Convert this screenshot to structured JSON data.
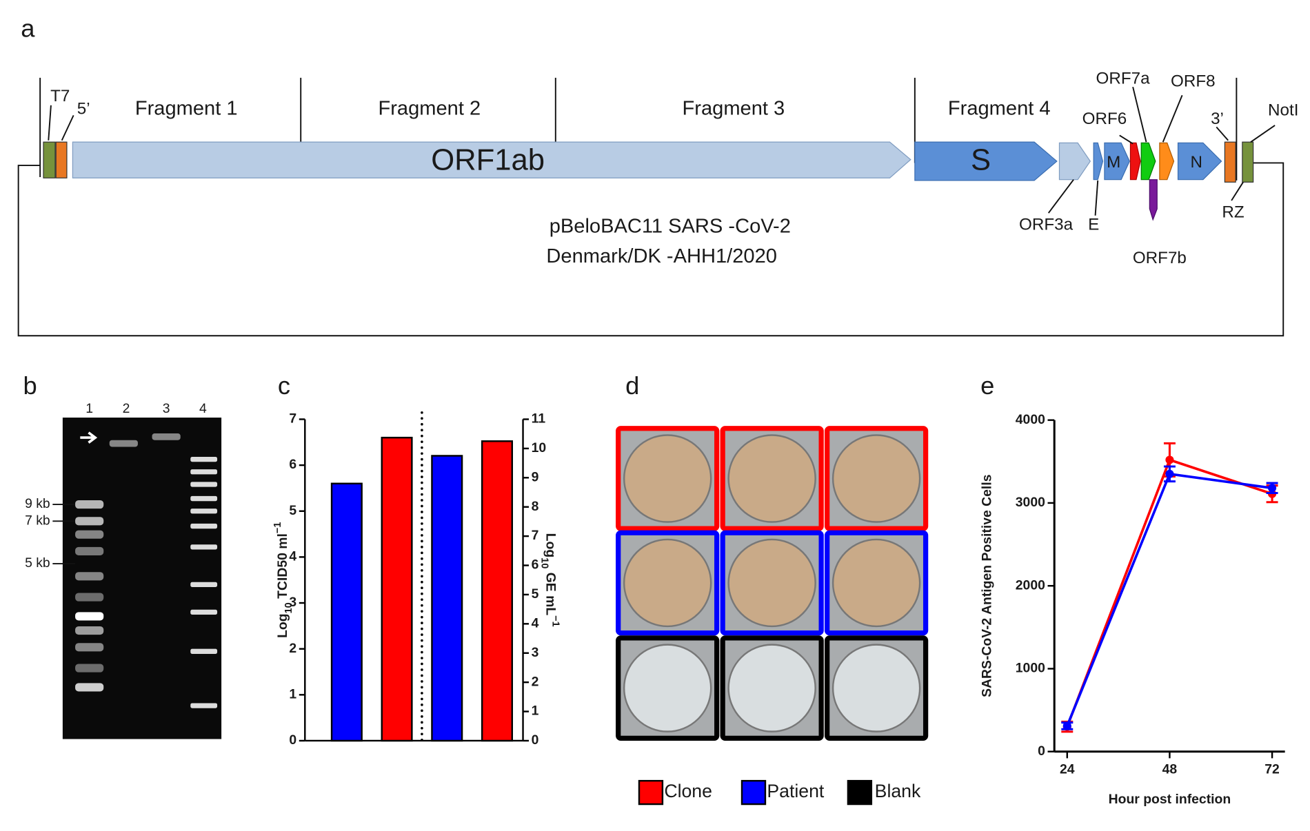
{
  "panels": {
    "a": {
      "label": "a",
      "texts": [
        "T7",
        "5’",
        "Fragment 1",
        "Fragment 2",
        "Fragment 3",
        "Fragment 4",
        "ORF1ab",
        "S",
        "M",
        "N",
        "ORF3a",
        "E",
        "ORF6",
        "ORF7a",
        "ORF7b",
        "ORF8",
        "3’",
        "RZ",
        "NotI"
      ],
      "construct": [
        "pBeloBAC11 SARS -CoV-2",
        "Denmark/DK -AHH1/2020"
      ]
    },
    "b": {
      "label": "b",
      "lanes": [
        "1",
        "2",
        "3",
        "4"
      ],
      "sizes": [
        "9 kb",
        "7 kb",
        "5 kb"
      ]
    },
    "d": {
      "label": "d",
      "legend": [
        "Clone",
        "Patient",
        "Blank"
      ],
      "legend_colors": [
        "#ff0000",
        "#0000ff",
        "#000000"
      ]
    }
  },
  "chart_data": [
    {
      "type": "bar",
      "panel_label": "c",
      "categories": [
        null,
        null,
        null,
        null
      ],
      "colors": [
        "#0000ff",
        "#ff0000",
        "#0000ff",
        "#ff0000"
      ],
      "series": [
        {
          "values": [
            5.6,
            6.6,
            null,
            null
          ]
        },
        {
          "axis": "y2",
          "values": [
            null,
            null,
            9.75,
            10.25
          ]
        }
      ],
      "ylabel": [
        "Log",
        "10",
        " TCID50 ml",
        "−1"
      ],
      "y2label": [
        "Log",
        "10",
        " GE mL",
        "−1"
      ],
      "ylim": [
        0,
        7
      ],
      "yticks": [
        0,
        1,
        2,
        3,
        4,
        5,
        6,
        7
      ],
      "y2lim": [
        0,
        11
      ],
      "y2ticks": [
        0,
        1,
        2,
        3,
        4,
        5,
        6,
        7,
        8,
        9,
        10,
        11
      ]
    },
    {
      "type": "line",
      "panel_label": "e",
      "x": [
        24,
        48,
        72
      ],
      "series": [
        {
          "color": "#ff0000",
          "values": [
            300,
            3520,
            3110
          ],
          "errors": [
            60,
            200,
            100
          ]
        },
        {
          "color": "#0000ff",
          "values": [
            310,
            3350,
            3180
          ],
          "errors": [
            40,
            90,
            60
          ]
        }
      ],
      "xlabel": "Hour post infection",
      "ylabel": "SARS-CoV-2 Antigen Positive Cells",
      "xlim": [
        21,
        75
      ],
      "xticks": [
        24,
        48,
        72
      ],
      "ylim": [
        0,
        4000
      ],
      "yticks": [
        0,
        1000,
        2000,
        3000,
        4000
      ]
    }
  ]
}
